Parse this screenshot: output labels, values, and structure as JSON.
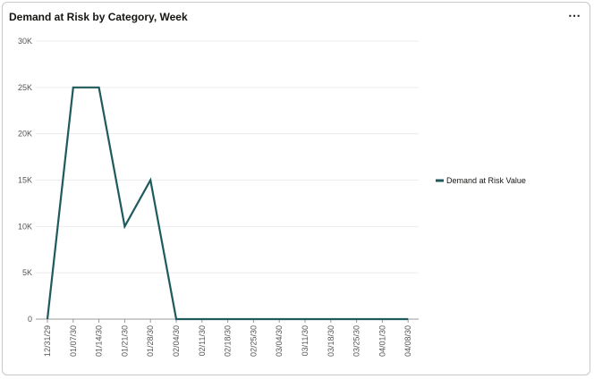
{
  "widget": {
    "title": "Demand at Risk by Category, Week",
    "menu_label": "⋯"
  },
  "chart_data": {
    "type": "line",
    "title": "Demand at Risk by Category, Week",
    "xlabel": "",
    "ylabel": "",
    "ylim": [
      0,
      30000
    ],
    "y_ticks": [
      0,
      5000,
      10000,
      15000,
      20000,
      25000,
      30000
    ],
    "y_tick_labels": [
      "0",
      "5K",
      "10K",
      "15K",
      "20K",
      "25K",
      "30K"
    ],
    "grid": true,
    "legend_position": "right",
    "categories": [
      "12/31/29",
      "01/07/30",
      "01/14/30",
      "01/21/30",
      "01/28/30",
      "02/04/30",
      "02/11/30",
      "02/18/30",
      "02/25/30",
      "03/04/30",
      "03/11/30",
      "03/18/30",
      "03/25/30",
      "04/01/30",
      "04/08/30"
    ],
    "series": [
      {
        "name": "Demand at Risk Value",
        "color": "#1f5a5c",
        "values": [
          0,
          25000,
          25000,
          10000,
          15000,
          0,
          0,
          0,
          0,
          0,
          0,
          0,
          0,
          0,
          0
        ]
      }
    ]
  }
}
